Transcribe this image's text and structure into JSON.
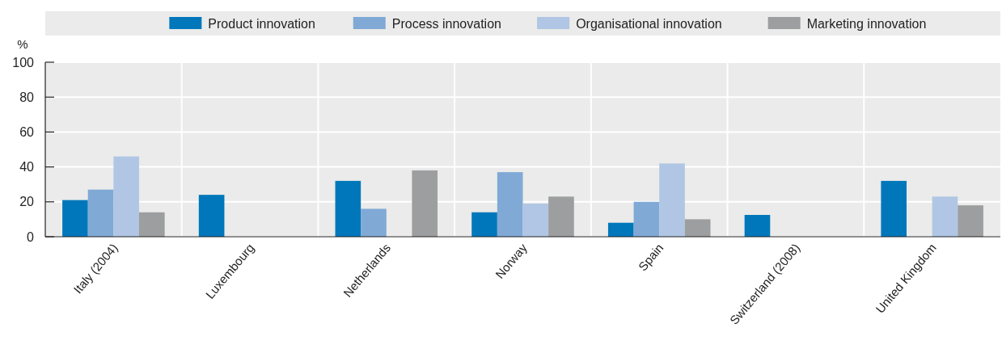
{
  "chart_data": {
    "type": "bar",
    "ylabel": "%",
    "categories": [
      "Italy (2004)",
      "Luxembourg",
      "Netherlands",
      "Norway",
      "Spain",
      "Switzerland (2008)",
      "United Kingdom"
    ],
    "series": [
      {
        "name": "Product innovation",
        "color": "#0077bb",
        "values": [
          21,
          24,
          32,
          14,
          8,
          12.5,
          32
        ]
      },
      {
        "name": "Process innovation",
        "color": "#80a9d6",
        "values": [
          27,
          null,
          16,
          37,
          20,
          null,
          null
        ]
      },
      {
        "name": "Organisational innovation",
        "color": "#b0c6e4",
        "values": [
          46,
          null,
          null,
          19,
          42,
          null,
          23
        ]
      },
      {
        "name": "Marketing innovation",
        "color": "#9d9e9f",
        "values": [
          14,
          null,
          38,
          23,
          10,
          null,
          18
        ]
      }
    ],
    "ylim": [
      0,
      100
    ],
    "yticks": [
      0,
      20,
      40,
      60,
      80,
      100
    ],
    "grid": true,
    "legend": "top"
  }
}
